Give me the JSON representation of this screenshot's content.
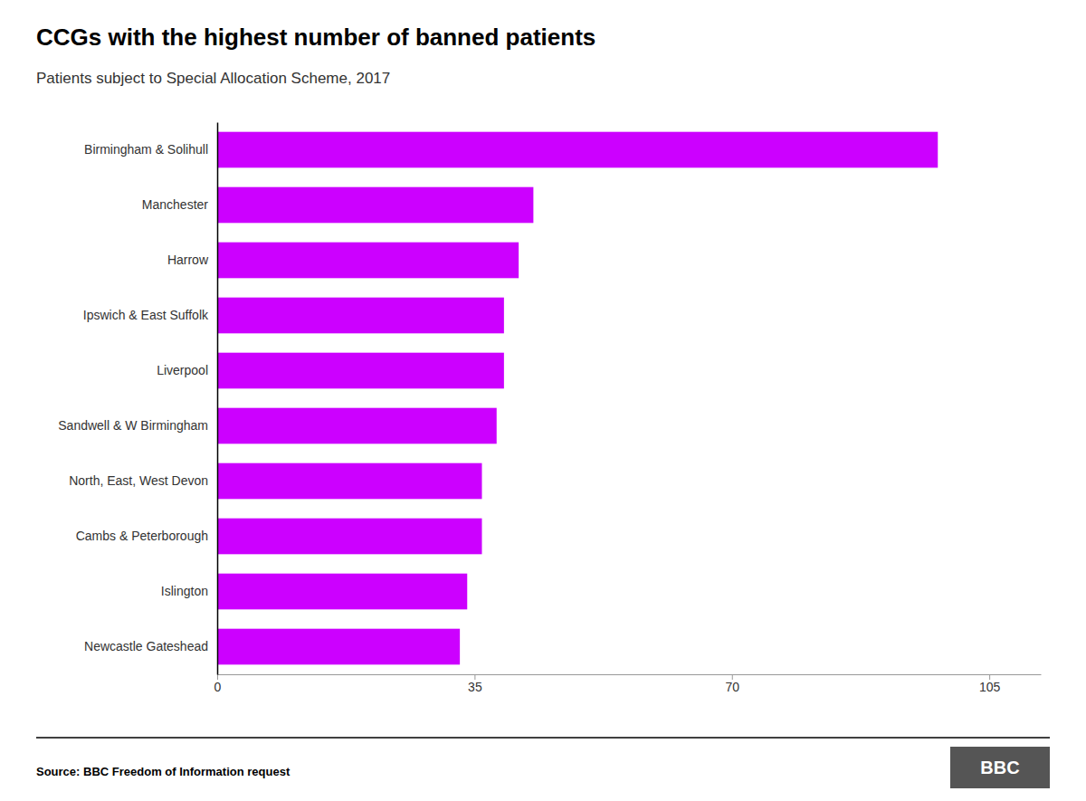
{
  "chart_data": {
    "type": "bar",
    "orientation": "horizontal",
    "title": "CCGs with the highest number of banned patients",
    "subtitle": "Patients subject to Special Allocation Scheme, 2017",
    "annotations": [
      "Source: BBC Freedom of Information request",
      "BBC"
    ],
    "categories": [
      "Newcastle Gateshead",
      "Islington",
      "Cambs & Peterborough",
      "North, East, West Devon",
      "Sandwell & W Birmingham",
      "Liverpool",
      "Ipswich & East Suffolk",
      "Harrow",
      "Manchester",
      "Birmingham & Solihull"
    ],
    "values": [
      33,
      34,
      36,
      36,
      38,
      39,
      39,
      41,
      43,
      98
    ],
    "color": "#CC00FF",
    "xlim": [
      0,
      112
    ],
    "xticks": [
      0,
      35,
      70,
      105
    ],
    "grid": false
  }
}
